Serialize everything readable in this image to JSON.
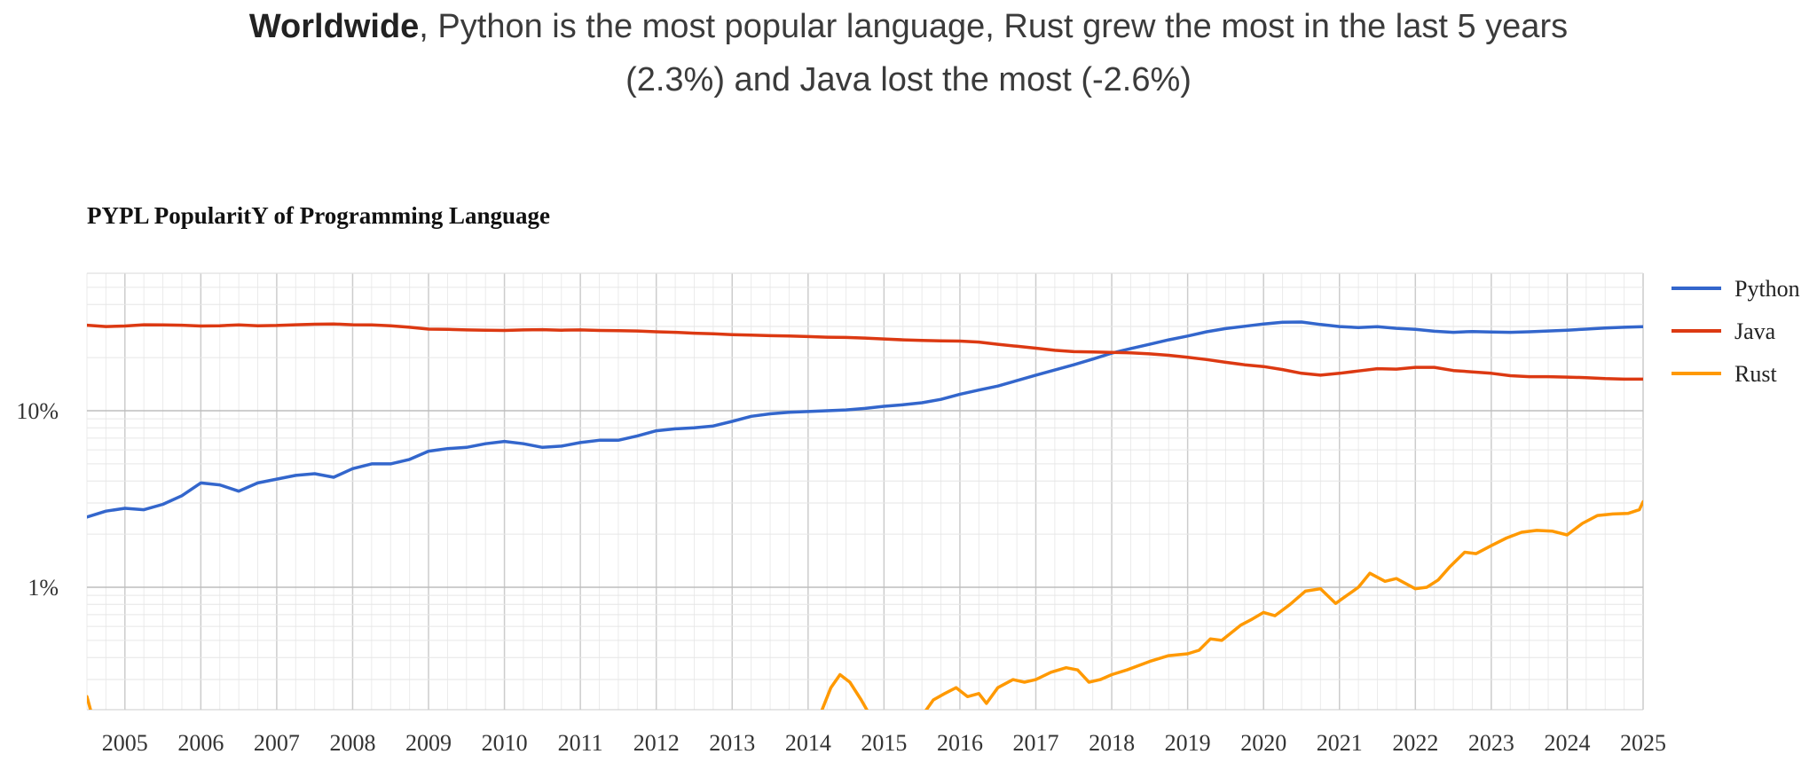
{
  "headline": {
    "bold": "Worldwide",
    "line1_rest": ", Python is the most popular language, Rust grew the most in the last 5 years",
    "line2": "(2.3%) and Java lost the most (-2.6%)"
  },
  "chart_data": {
    "type": "line",
    "title": "PYPL PopularitY of Programming Language",
    "y_scale": "log",
    "ylim": [
      0.2,
      60
    ],
    "y_ticks": [
      {
        "value": 10,
        "label": "10%"
      },
      {
        "value": 1,
        "label": "1%"
      }
    ],
    "xlim": [
      2004.5,
      2025.0
    ],
    "x_ticks": [
      2005,
      2006,
      2007,
      2008,
      2009,
      2010,
      2011,
      2012,
      2013,
      2014,
      2015,
      2016,
      2017,
      2018,
      2019,
      2020,
      2021,
      2022,
      2023,
      2024,
      2025
    ],
    "grid": true,
    "legend": "right",
    "series": [
      {
        "name": "Python",
        "color": "#3366cc",
        "points": [
          [
            2004.5,
            2.5
          ],
          [
            2004.75,
            2.7
          ],
          [
            2005.0,
            2.8
          ],
          [
            2005.25,
            2.75
          ],
          [
            2005.5,
            2.95
          ],
          [
            2005.75,
            3.3
          ],
          [
            2006.0,
            3.9
          ],
          [
            2006.25,
            3.8
          ],
          [
            2006.5,
            3.5
          ],
          [
            2006.75,
            3.9
          ],
          [
            2007.0,
            4.1
          ],
          [
            2007.25,
            4.3
          ],
          [
            2007.5,
            4.4
          ],
          [
            2007.75,
            4.2
          ],
          [
            2008.0,
            4.7
          ],
          [
            2008.25,
            5.0
          ],
          [
            2008.5,
            5.0
          ],
          [
            2008.75,
            5.3
          ],
          [
            2009.0,
            5.9
          ],
          [
            2009.25,
            6.1
          ],
          [
            2009.5,
            6.2
          ],
          [
            2009.75,
            6.5
          ],
          [
            2010.0,
            6.7
          ],
          [
            2010.25,
            6.5
          ],
          [
            2010.5,
            6.2
          ],
          [
            2010.75,
            6.3
          ],
          [
            2011.0,
            6.6
          ],
          [
            2011.25,
            6.8
          ],
          [
            2011.5,
            6.8
          ],
          [
            2011.75,
            7.2
          ],
          [
            2012.0,
            7.7
          ],
          [
            2012.25,
            7.9
          ],
          [
            2012.5,
            8.0
          ],
          [
            2012.75,
            8.2
          ],
          [
            2013.0,
            8.7
          ],
          [
            2013.25,
            9.3
          ],
          [
            2013.5,
            9.6
          ],
          [
            2013.75,
            9.8
          ],
          [
            2014.0,
            9.9
          ],
          [
            2014.25,
            10.0
          ],
          [
            2014.5,
            10.1
          ],
          [
            2014.75,
            10.3
          ],
          [
            2015.0,
            10.6
          ],
          [
            2015.25,
            10.8
          ],
          [
            2015.5,
            11.1
          ],
          [
            2015.75,
            11.6
          ],
          [
            2016.0,
            12.4
          ],
          [
            2016.25,
            13.1
          ],
          [
            2016.5,
            13.8
          ],
          [
            2016.75,
            14.8
          ],
          [
            2017.0,
            15.9
          ],
          [
            2017.25,
            17.0
          ],
          [
            2017.5,
            18.2
          ],
          [
            2017.75,
            19.6
          ],
          [
            2018.0,
            21.2
          ],
          [
            2018.25,
            22.5
          ],
          [
            2018.5,
            23.8
          ],
          [
            2018.75,
            25.2
          ],
          [
            2019.0,
            26.5
          ],
          [
            2019.25,
            28.0
          ],
          [
            2019.5,
            29.2
          ],
          [
            2019.75,
            30.1
          ],
          [
            2020.0,
            31.0
          ],
          [
            2020.25,
            31.7
          ],
          [
            2020.5,
            31.8
          ],
          [
            2020.75,
            30.8
          ],
          [
            2021.0,
            30.0
          ],
          [
            2021.25,
            29.6
          ],
          [
            2021.5,
            29.9
          ],
          [
            2021.75,
            29.3
          ],
          [
            2022.0,
            28.9
          ],
          [
            2022.25,
            28.2
          ],
          [
            2022.5,
            27.8
          ],
          [
            2022.75,
            28.1
          ],
          [
            2023.0,
            27.9
          ],
          [
            2023.25,
            27.8
          ],
          [
            2023.5,
            28.0
          ],
          [
            2023.75,
            28.3
          ],
          [
            2024.0,
            28.6
          ],
          [
            2024.25,
            29.0
          ],
          [
            2024.5,
            29.4
          ],
          [
            2024.75,
            29.7
          ],
          [
            2025.0,
            29.9
          ]
        ]
      },
      {
        "name": "Java",
        "color": "#dc3912",
        "points": [
          [
            2004.5,
            30.5
          ],
          [
            2004.75,
            30.0
          ],
          [
            2005.0,
            30.2
          ],
          [
            2005.25,
            30.7
          ],
          [
            2005.5,
            30.6
          ],
          [
            2005.75,
            30.5
          ],
          [
            2006.0,
            30.2
          ],
          [
            2006.25,
            30.3
          ],
          [
            2006.5,
            30.6
          ],
          [
            2006.75,
            30.3
          ],
          [
            2007.0,
            30.4
          ],
          [
            2007.25,
            30.7
          ],
          [
            2007.5,
            30.9
          ],
          [
            2007.75,
            31.0
          ],
          [
            2008.0,
            30.7
          ],
          [
            2008.25,
            30.6
          ],
          [
            2008.5,
            30.3
          ],
          [
            2008.75,
            29.7
          ],
          [
            2009.0,
            29.0
          ],
          [
            2009.25,
            28.9
          ],
          [
            2009.5,
            28.7
          ],
          [
            2009.75,
            28.6
          ],
          [
            2010.0,
            28.5
          ],
          [
            2010.25,
            28.7
          ],
          [
            2010.5,
            28.8
          ],
          [
            2010.75,
            28.6
          ],
          [
            2011.0,
            28.7
          ],
          [
            2011.25,
            28.5
          ],
          [
            2011.5,
            28.4
          ],
          [
            2011.75,
            28.3
          ],
          [
            2012.0,
            28.0
          ],
          [
            2012.25,
            27.8
          ],
          [
            2012.5,
            27.5
          ],
          [
            2012.75,
            27.3
          ],
          [
            2013.0,
            27.0
          ],
          [
            2013.25,
            26.8
          ],
          [
            2013.5,
            26.6
          ],
          [
            2013.75,
            26.5
          ],
          [
            2014.0,
            26.3
          ],
          [
            2014.25,
            26.1
          ],
          [
            2014.5,
            26.0
          ],
          [
            2014.75,
            25.8
          ],
          [
            2015.0,
            25.5
          ],
          [
            2015.25,
            25.2
          ],
          [
            2015.5,
            25.0
          ],
          [
            2015.75,
            24.9
          ],
          [
            2016.0,
            24.8
          ],
          [
            2016.25,
            24.5
          ],
          [
            2016.5,
            23.8
          ],
          [
            2016.75,
            23.2
          ],
          [
            2017.0,
            22.6
          ],
          [
            2017.25,
            22.0
          ],
          [
            2017.5,
            21.6
          ],
          [
            2017.75,
            21.5
          ],
          [
            2018.0,
            21.4
          ],
          [
            2018.25,
            21.3
          ],
          [
            2018.5,
            21.0
          ],
          [
            2018.75,
            20.6
          ],
          [
            2019.0,
            20.1
          ],
          [
            2019.25,
            19.5
          ],
          [
            2019.5,
            18.8
          ],
          [
            2019.75,
            18.2
          ],
          [
            2020.0,
            17.8
          ],
          [
            2020.25,
            17.1
          ],
          [
            2020.5,
            16.3
          ],
          [
            2020.75,
            15.9
          ],
          [
            2021.0,
            16.3
          ],
          [
            2021.25,
            16.8
          ],
          [
            2021.5,
            17.3
          ],
          [
            2021.75,
            17.2
          ],
          [
            2022.0,
            17.6
          ],
          [
            2022.25,
            17.6
          ],
          [
            2022.5,
            16.9
          ],
          [
            2022.75,
            16.6
          ],
          [
            2023.0,
            16.3
          ],
          [
            2023.25,
            15.8
          ],
          [
            2023.5,
            15.6
          ],
          [
            2023.75,
            15.6
          ],
          [
            2024.0,
            15.5
          ],
          [
            2024.25,
            15.4
          ],
          [
            2024.5,
            15.2
          ],
          [
            2024.75,
            15.1
          ],
          [
            2025.0,
            15.1
          ]
        ]
      },
      {
        "name": "Rust",
        "color": "#ff9900",
        "segments": [
          [
            [
              2004.5,
              0.24
            ],
            [
              2004.55,
              0.2
            ]
          ],
          [
            [
              2014.18,
              0.2
            ],
            [
              2014.3,
              0.27
            ],
            [
              2014.42,
              0.32
            ],
            [
              2014.55,
              0.29
            ],
            [
              2014.7,
              0.23
            ],
            [
              2014.78,
              0.2
            ]
          ],
          [
            [
              2015.55,
              0.2
            ],
            [
              2015.65,
              0.23
            ],
            [
              2015.8,
              0.25
            ],
            [
              2015.95,
              0.27
            ],
            [
              2016.1,
              0.24
            ],
            [
              2016.25,
              0.25
            ],
            [
              2016.35,
              0.22
            ],
            [
              2016.5,
              0.27
            ],
            [
              2016.7,
              0.3
            ],
            [
              2016.85,
              0.29
            ],
            [
              2017.0,
              0.3
            ],
            [
              2017.2,
              0.33
            ],
            [
              2017.4,
              0.35
            ],
            [
              2017.55,
              0.34
            ],
            [
              2017.7,
              0.29
            ],
            [
              2017.85,
              0.3
            ],
            [
              2018.0,
              0.32
            ],
            [
              2018.2,
              0.34
            ],
            [
              2018.5,
              0.38
            ],
            [
              2018.75,
              0.41
            ],
            [
              2019.0,
              0.42
            ],
            [
              2019.15,
              0.44
            ],
            [
              2019.3,
              0.51
            ],
            [
              2019.45,
              0.5
            ],
            [
              2019.7,
              0.61
            ],
            [
              2019.85,
              0.66
            ],
            [
              2020.0,
              0.72
            ],
            [
              2020.15,
              0.69
            ],
            [
              2020.35,
              0.8
            ],
            [
              2020.55,
              0.95
            ],
            [
              2020.75,
              0.98
            ],
            [
              2020.95,
              0.81
            ],
            [
              2021.1,
              0.9
            ],
            [
              2021.25,
              1.0
            ],
            [
              2021.4,
              1.2
            ],
            [
              2021.6,
              1.08
            ],
            [
              2021.75,
              1.12
            ],
            [
              2022.0,
              0.98
            ],
            [
              2022.15,
              1.0
            ],
            [
              2022.3,
              1.1
            ],
            [
              2022.45,
              1.3
            ],
            [
              2022.65,
              1.58
            ],
            [
              2022.8,
              1.55
            ],
            [
              2023.0,
              1.72
            ],
            [
              2023.2,
              1.9
            ],
            [
              2023.4,
              2.05
            ],
            [
              2023.6,
              2.1
            ],
            [
              2023.8,
              2.08
            ],
            [
              2024.0,
              1.98
            ],
            [
              2024.2,
              2.3
            ],
            [
              2024.4,
              2.55
            ],
            [
              2024.6,
              2.6
            ],
            [
              2024.8,
              2.62
            ],
            [
              2024.95,
              2.75
            ],
            [
              2025.0,
              3.05
            ]
          ]
        ]
      }
    ]
  }
}
